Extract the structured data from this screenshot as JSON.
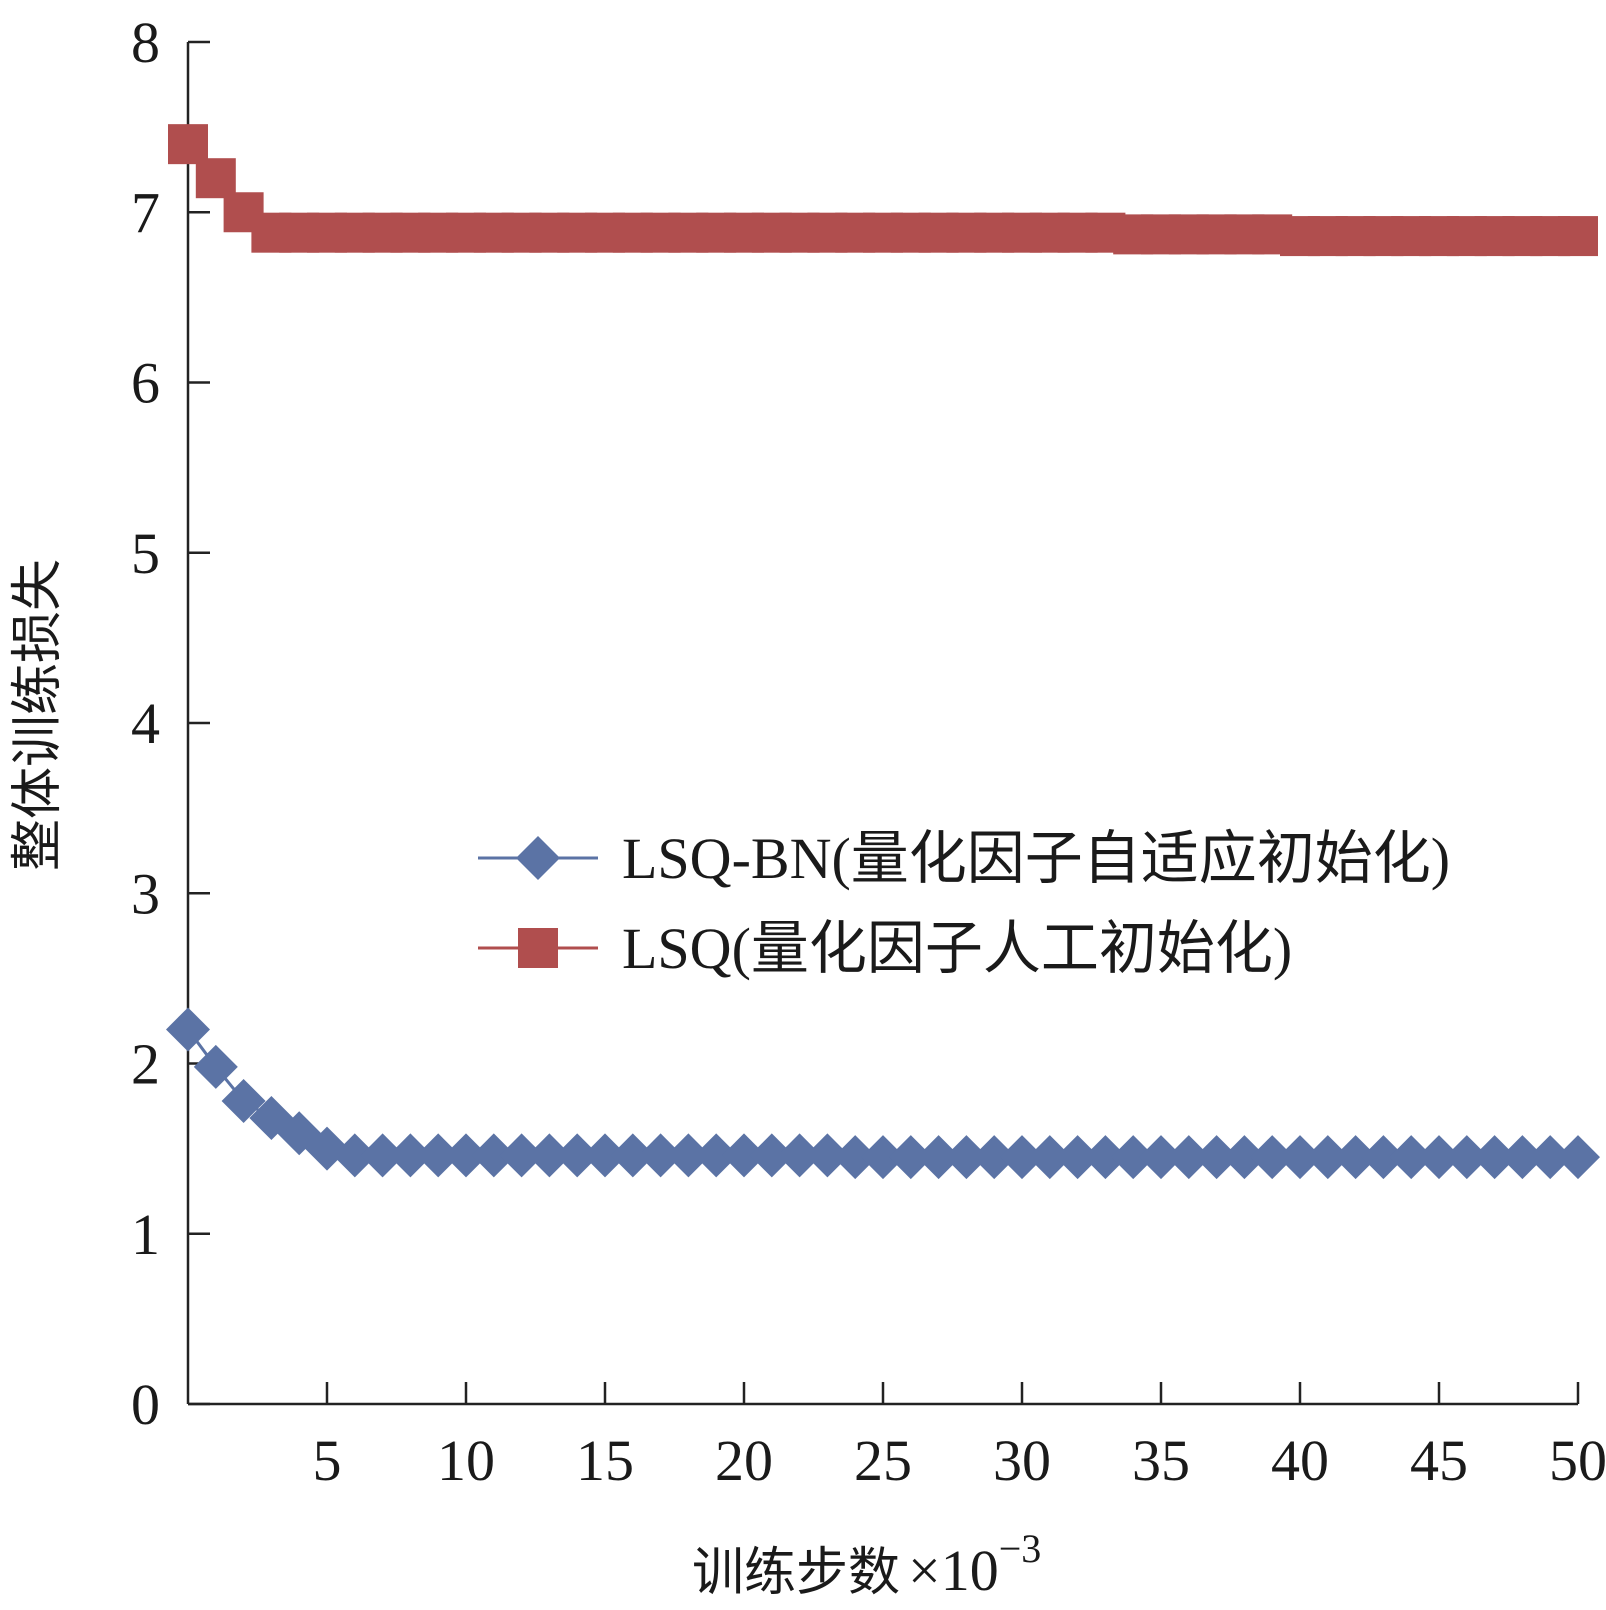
{
  "chart_data": {
    "type": "line",
    "xlabel": "训练步数",
    "xlabel_multiplier_base": "×10",
    "xlabel_multiplier_exp": "−3",
    "ylabel": "整体训练损失",
    "xlim": [
      0,
      50
    ],
    "ylim": [
      0,
      8
    ],
    "x_ticks": [
      5,
      10,
      15,
      20,
      25,
      30,
      35,
      40,
      45,
      50
    ],
    "y_ticks": [
      0,
      1,
      2,
      3,
      4,
      5,
      6,
      7,
      8
    ],
    "grid": false,
    "legend_position": "center-right",
    "series": [
      {
        "name": "LSQ-BN(量化因子自适应初始化)",
        "color": "#5b73a5",
        "marker": "diamond",
        "x": [
          0,
          1,
          2,
          3,
          4,
          5,
          6,
          7,
          8,
          9,
          10,
          11,
          12,
          13,
          14,
          15,
          16,
          17,
          18,
          19,
          20,
          21,
          22,
          23,
          24,
          25,
          26,
          27,
          28,
          29,
          30,
          31,
          32,
          33,
          34,
          35,
          36,
          37,
          38,
          39,
          40,
          41,
          42,
          43,
          44,
          45,
          46,
          47,
          48,
          49,
          50
        ],
        "values": [
          2.2,
          1.98,
          1.78,
          1.68,
          1.59,
          1.5,
          1.46,
          1.46,
          1.46,
          1.46,
          1.46,
          1.46,
          1.46,
          1.46,
          1.46,
          1.46,
          1.46,
          1.46,
          1.46,
          1.46,
          1.46,
          1.46,
          1.46,
          1.46,
          1.45,
          1.45,
          1.45,
          1.45,
          1.45,
          1.45,
          1.45,
          1.45,
          1.45,
          1.45,
          1.45,
          1.45,
          1.45,
          1.45,
          1.45,
          1.45,
          1.45,
          1.45,
          1.45,
          1.45,
          1.45,
          1.45,
          1.45,
          1.45,
          1.45,
          1.45,
          1.45
        ]
      },
      {
        "name": "LSQ(量化因子人工初始化)",
        "color": "#b04e4e",
        "marker": "square",
        "x": [
          0,
          1,
          2,
          3,
          4,
          5,
          6,
          7,
          8,
          9,
          10,
          11,
          12,
          13,
          14,
          15,
          16,
          17,
          18,
          19,
          20,
          21,
          22,
          23,
          24,
          25,
          26,
          27,
          28,
          29,
          30,
          31,
          32,
          33,
          34,
          35,
          36,
          37,
          38,
          39,
          40,
          41,
          42,
          43,
          44,
          45,
          46,
          47,
          48,
          49,
          50
        ],
        "values": [
          7.4,
          7.2,
          7.0,
          6.88,
          6.88,
          6.88,
          6.88,
          6.88,
          6.88,
          6.88,
          6.88,
          6.88,
          6.88,
          6.88,
          6.88,
          6.88,
          6.88,
          6.88,
          6.88,
          6.88,
          6.88,
          6.88,
          6.88,
          6.88,
          6.88,
          6.88,
          6.88,
          6.88,
          6.88,
          6.88,
          6.88,
          6.88,
          6.88,
          6.88,
          6.87,
          6.87,
          6.87,
          6.87,
          6.87,
          6.87,
          6.86,
          6.86,
          6.86,
          6.86,
          6.86,
          6.86,
          6.86,
          6.86,
          6.86,
          6.86,
          6.86
        ]
      }
    ]
  }
}
